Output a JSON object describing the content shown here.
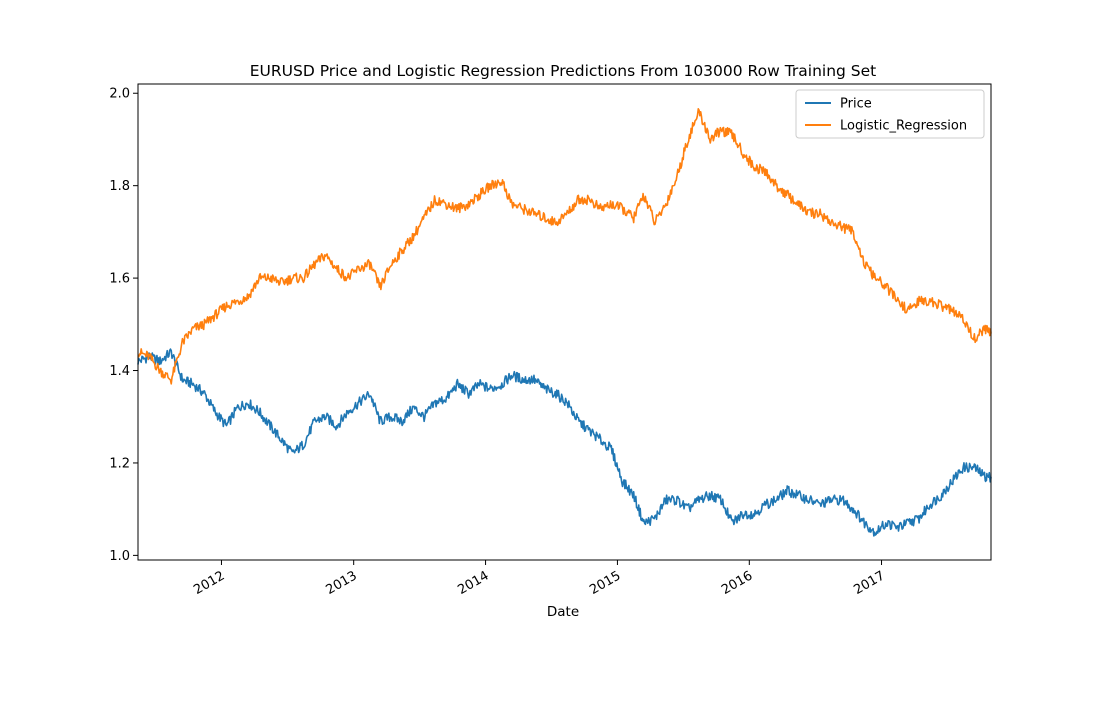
{
  "chart_data": {
    "type": "line",
    "title": "EURUSD Price and Logistic Regression Predictions From 103000 Row Training Set",
    "xlabel": "Date",
    "ylabel": "",
    "xlim": [
      "2011-05-15",
      "2017-10-31"
    ],
    "ylim": [
      0.99,
      2.02
    ],
    "x_ticks": [
      {
        "date": "2012-01-01",
        "label": "2012"
      },
      {
        "date": "2013-01-01",
        "label": "2013"
      },
      {
        "date": "2014-01-01",
        "label": "2014"
      },
      {
        "date": "2015-01-01",
        "label": "2015"
      },
      {
        "date": "2016-01-01",
        "label": "2016"
      },
      {
        "date": "2017-01-01",
        "label": "2017"
      }
    ],
    "y_ticks": [
      {
        "value": 1.0,
        "label": "1.0"
      },
      {
        "value": 1.2,
        "label": "1.2"
      },
      {
        "value": 1.4,
        "label": "1.4"
      },
      {
        "value": 1.6,
        "label": "1.6"
      },
      {
        "value": 1.8,
        "label": "1.8"
      },
      {
        "value": 2.0,
        "label": "2.0"
      }
    ],
    "legend": {
      "location": "upper right"
    },
    "grid": false,
    "series": [
      {
        "name": "Price",
        "color": "#1f77b4",
        "points": [
          [
            "2011-05-15",
            1.42
          ],
          [
            "2011-06-15",
            1.43
          ],
          [
            "2011-07-15",
            1.42
          ],
          [
            "2011-08-15",
            1.44
          ],
          [
            "2011-09-15",
            1.38
          ],
          [
            "2011-10-15",
            1.37
          ],
          [
            "2011-11-15",
            1.35
          ],
          [
            "2011-12-15",
            1.31
          ],
          [
            "2012-01-15",
            1.28
          ],
          [
            "2012-02-15",
            1.32
          ],
          [
            "2012-03-15",
            1.33
          ],
          [
            "2012-04-15",
            1.31
          ],
          [
            "2012-05-15",
            1.28
          ],
          [
            "2012-06-15",
            1.25
          ],
          [
            "2012-07-15",
            1.22
          ],
          [
            "2012-08-15",
            1.24
          ],
          [
            "2012-09-15",
            1.29
          ],
          [
            "2012-10-15",
            1.3
          ],
          [
            "2012-11-15",
            1.28
          ],
          [
            "2012-12-15",
            1.31
          ],
          [
            "2013-01-15",
            1.33
          ],
          [
            "2013-02-15",
            1.35
          ],
          [
            "2013-03-15",
            1.29
          ],
          [
            "2013-04-15",
            1.3
          ],
          [
            "2013-05-15",
            1.29
          ],
          [
            "2013-06-15",
            1.32
          ],
          [
            "2013-07-15",
            1.3
          ],
          [
            "2013-08-15",
            1.33
          ],
          [
            "2013-09-15",
            1.34
          ],
          [
            "2013-10-15",
            1.37
          ],
          [
            "2013-11-15",
            1.35
          ],
          [
            "2013-12-15",
            1.37
          ],
          [
            "2014-01-15",
            1.36
          ],
          [
            "2014-02-15",
            1.37
          ],
          [
            "2014-03-15",
            1.39
          ],
          [
            "2014-04-15",
            1.38
          ],
          [
            "2014-05-15",
            1.38
          ],
          [
            "2014-06-15",
            1.36
          ],
          [
            "2014-07-15",
            1.35
          ],
          [
            "2014-08-15",
            1.33
          ],
          [
            "2014-09-15",
            1.29
          ],
          [
            "2014-10-15",
            1.27
          ],
          [
            "2014-11-15",
            1.25
          ],
          [
            "2014-12-15",
            1.23
          ],
          [
            "2015-01-15",
            1.16
          ],
          [
            "2015-02-15",
            1.13
          ],
          [
            "2015-03-15",
            1.07
          ],
          [
            "2015-04-15",
            1.08
          ],
          [
            "2015-05-15",
            1.12
          ],
          [
            "2015-06-15",
            1.12
          ],
          [
            "2015-07-15",
            1.1
          ],
          [
            "2015-08-15",
            1.12
          ],
          [
            "2015-09-15",
            1.13
          ],
          [
            "2015-10-15",
            1.12
          ],
          [
            "2015-11-15",
            1.07
          ],
          [
            "2015-12-15",
            1.09
          ],
          [
            "2016-01-15",
            1.09
          ],
          [
            "2016-02-15",
            1.11
          ],
          [
            "2016-03-15",
            1.12
          ],
          [
            "2016-04-15",
            1.14
          ],
          [
            "2016-05-15",
            1.13
          ],
          [
            "2016-06-15",
            1.12
          ],
          [
            "2016-07-15",
            1.11
          ],
          [
            "2016-08-15",
            1.12
          ],
          [
            "2016-09-15",
            1.12
          ],
          [
            "2016-10-15",
            1.1
          ],
          [
            "2016-11-15",
            1.07
          ],
          [
            "2016-12-15",
            1.05
          ],
          [
            "2017-01-15",
            1.07
          ],
          [
            "2017-02-15",
            1.06
          ],
          [
            "2017-03-15",
            1.07
          ],
          [
            "2017-04-15",
            1.08
          ],
          [
            "2017-05-15",
            1.11
          ],
          [
            "2017-06-15",
            1.13
          ],
          [
            "2017-07-15",
            1.16
          ],
          [
            "2017-08-15",
            1.19
          ],
          [
            "2017-09-15",
            1.19
          ],
          [
            "2017-10-15",
            1.17
          ],
          [
            "2017-10-31",
            1.17
          ]
        ]
      },
      {
        "name": "Logistic_Regression",
        "color": "#ff7f0e",
        "points": [
          [
            "2011-05-15",
            1.44
          ],
          [
            "2011-06-15",
            1.43
          ],
          [
            "2011-07-15",
            1.4
          ],
          [
            "2011-08-15",
            1.38
          ],
          [
            "2011-09-15",
            1.46
          ],
          [
            "2011-10-15",
            1.49
          ],
          [
            "2011-11-15",
            1.5
          ],
          [
            "2011-12-15",
            1.52
          ],
          [
            "2012-01-15",
            1.54
          ],
          [
            "2012-02-15",
            1.55
          ],
          [
            "2012-03-15",
            1.56
          ],
          [
            "2012-04-15",
            1.6
          ],
          [
            "2012-05-15",
            1.6
          ],
          [
            "2012-06-15",
            1.59
          ],
          [
            "2012-07-15",
            1.6
          ],
          [
            "2012-08-15",
            1.6
          ],
          [
            "2012-09-15",
            1.63
          ],
          [
            "2012-10-15",
            1.65
          ],
          [
            "2012-11-15",
            1.62
          ],
          [
            "2012-12-15",
            1.6
          ],
          [
            "2013-01-15",
            1.62
          ],
          [
            "2013-02-15",
            1.63
          ],
          [
            "2013-03-15",
            1.58
          ],
          [
            "2013-04-15",
            1.63
          ],
          [
            "2013-05-15",
            1.66
          ],
          [
            "2013-06-15",
            1.69
          ],
          [
            "2013-07-15",
            1.73
          ],
          [
            "2013-08-15",
            1.77
          ],
          [
            "2013-09-15",
            1.76
          ],
          [
            "2013-10-15",
            1.75
          ],
          [
            "2013-11-15",
            1.76
          ],
          [
            "2013-12-15",
            1.78
          ],
          [
            "2014-01-15",
            1.8
          ],
          [
            "2014-02-15",
            1.81
          ],
          [
            "2014-03-15",
            1.76
          ],
          [
            "2014-04-15",
            1.75
          ],
          [
            "2014-05-15",
            1.74
          ],
          [
            "2014-06-15",
            1.73
          ],
          [
            "2014-07-15",
            1.72
          ],
          [
            "2014-08-15",
            1.74
          ],
          [
            "2014-09-15",
            1.77
          ],
          [
            "2014-10-15",
            1.77
          ],
          [
            "2014-11-15",
            1.75
          ],
          [
            "2014-12-15",
            1.76
          ],
          [
            "2015-01-15",
            1.75
          ],
          [
            "2015-02-15",
            1.73
          ],
          [
            "2015-03-15",
            1.78
          ],
          [
            "2015-04-15",
            1.72
          ],
          [
            "2015-05-15",
            1.76
          ],
          [
            "2015-06-15",
            1.82
          ],
          [
            "2015-07-15",
            1.9
          ],
          [
            "2015-08-15",
            1.96
          ],
          [
            "2015-09-15",
            1.9
          ],
          [
            "2015-10-15",
            1.92
          ],
          [
            "2015-11-15",
            1.91
          ],
          [
            "2015-12-15",
            1.87
          ],
          [
            "2016-01-15",
            1.84
          ],
          [
            "2016-02-15",
            1.83
          ],
          [
            "2016-03-15",
            1.8
          ],
          [
            "2016-04-15",
            1.78
          ],
          [
            "2016-05-15",
            1.76
          ],
          [
            "2016-06-15",
            1.74
          ],
          [
            "2016-07-15",
            1.74
          ],
          [
            "2016-08-15",
            1.72
          ],
          [
            "2016-09-15",
            1.71
          ],
          [
            "2016-10-15",
            1.7
          ],
          [
            "2016-11-15",
            1.63
          ],
          [
            "2016-12-15",
            1.6
          ],
          [
            "2017-01-15",
            1.58
          ],
          [
            "2017-02-15",
            1.55
          ],
          [
            "2017-03-15",
            1.53
          ],
          [
            "2017-04-15",
            1.55
          ],
          [
            "2017-05-15",
            1.55
          ],
          [
            "2017-06-15",
            1.54
          ],
          [
            "2017-07-15",
            1.53
          ],
          [
            "2017-08-15",
            1.51
          ],
          [
            "2017-09-15",
            1.47
          ],
          [
            "2017-10-15",
            1.49
          ],
          [
            "2017-10-31",
            1.48
          ]
        ]
      }
    ]
  }
}
